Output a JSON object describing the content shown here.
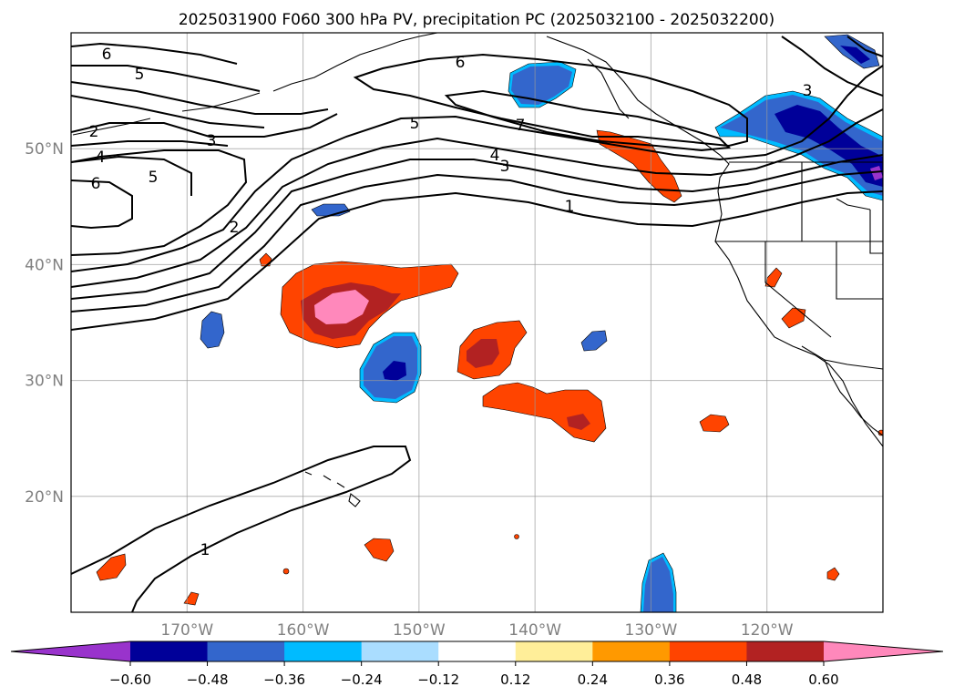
{
  "figure": {
    "title": "2025031900 F060 300 hPa PV, precipitation PC (2025032100 - 2025032200)"
  },
  "map": {
    "lon_ticks": [
      {
        "lon": -170,
        "label": "170°W"
      },
      {
        "lon": -160,
        "label": "160°W"
      },
      {
        "lon": -150,
        "label": "150°W"
      },
      {
        "lon": -140,
        "label": "140°W"
      },
      {
        "lon": -130,
        "label": "130°W"
      },
      {
        "lon": -120,
        "label": "120°W"
      }
    ],
    "lat_ticks": [
      {
        "lat": 50,
        "label": "50°N"
      },
      {
        "lat": 40,
        "label": "40°N"
      },
      {
        "lat": 30,
        "label": "30°N"
      },
      {
        "lat": 20,
        "label": "20°N"
      }
    ],
    "lon_range": [
      -180,
      -110
    ],
    "lat_range": [
      10,
      60
    ],
    "grid": true,
    "contour_labels": [
      "6",
      "5",
      "2",
      "4",
      "6",
      "3",
      "5",
      "2",
      "6",
      "5",
      "7",
      "4",
      "3",
      "1",
      "3",
      "1"
    ]
  },
  "colorbar": {
    "orientation": "horizontal",
    "extend": "both",
    "colors": [
      "#9933cc",
      "#000099",
      "#3366cc",
      "#00bbff",
      "#aaddff",
      "#ffffff",
      "#ffee99",
      "#ff9900",
      "#ff4400",
      "#b22222",
      "#ff88bb",
      "#ff88bb"
    ],
    "ticks": [
      "−0.60",
      "−0.48",
      "−0.36",
      "−0.24",
      "−0.12",
      "0.12",
      "0.24",
      "0.36",
      "0.48",
      "0.60"
    ]
  }
}
